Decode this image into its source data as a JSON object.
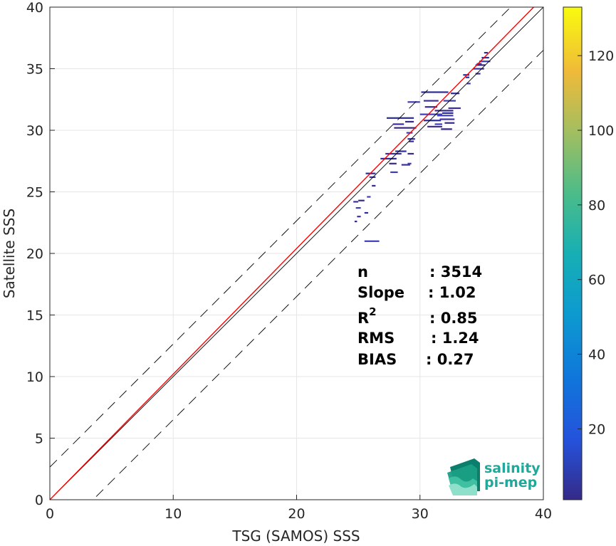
{
  "chart_data": {
    "type": "heatmap",
    "xlabel": "TSG (SAMOS) SSS",
    "ylabel": "Satellite SSS",
    "xlim": [
      0,
      40
    ],
    "ylim": [
      0,
      40
    ],
    "x_ticks": [
      0,
      10,
      20,
      30,
      40
    ],
    "y_ticks": [
      0,
      5,
      10,
      15,
      20,
      25,
      30,
      35,
      40
    ],
    "grid": true,
    "colormap": "parula",
    "colorbar": {
      "range": [
        1,
        133
      ],
      "ticks": [
        20,
        40,
        60,
        80,
        100,
        120
      ]
    },
    "reference_lines": [
      {
        "kind": "identity",
        "slope": 1,
        "intercept": 0,
        "color": "#000000",
        "style": "solid"
      },
      {
        "kind": "upper-bound",
        "slope": 1,
        "intercept": 2.65,
        "color": "#000000",
        "style": "dashed"
      },
      {
        "kind": "lower-bound",
        "slope": 1,
        "intercept": -3.5,
        "color": "#000000",
        "style": "dashed"
      },
      {
        "kind": "regression",
        "slope": 1.02,
        "intercept": 0,
        "color": "#ff0000",
        "style": "solid"
      }
    ],
    "density_segments": [
      [
        24.6,
        24.2,
        0.4
      ],
      [
        25.0,
        24.3,
        0.5
      ],
      [
        24.8,
        23.7,
        0.4
      ],
      [
        25.5,
        23.3,
        0.3
      ],
      [
        24.9,
        23.0,
        0.3
      ],
      [
        24.7,
        22.6,
        0.2
      ],
      [
        25.5,
        21.0,
        1.2
      ],
      [
        25.6,
        26.5,
        0.8
      ],
      [
        25.9,
        26.2,
        0.5
      ],
      [
        26.1,
        25.5,
        0.3
      ],
      [
        25.7,
        24.6,
        0.3
      ],
      [
        26.8,
        27.7,
        1.3
      ],
      [
        27.2,
        28.1,
        1.3
      ],
      [
        27.5,
        27.3,
        0.6
      ],
      [
        27.6,
        26.6,
        0.6
      ],
      [
        28.0,
        28.3,
        0.9
      ],
      [
        28.5,
        27.2,
        0.7
      ],
      [
        29.0,
        28.1,
        0.5
      ],
      [
        29.0,
        27.3,
        0.3
      ],
      [
        27.3,
        31.0,
        2.2
      ],
      [
        27.8,
        30.5,
        0.9
      ],
      [
        27.9,
        30.2,
        1.8
      ],
      [
        28.9,
        29.8,
        0.5
      ],
      [
        29.0,
        29.3,
        0.6
      ],
      [
        29.1,
        29.1,
        0.4
      ],
      [
        28.8,
        30.7,
        0.7
      ],
      [
        29.0,
        32.3,
        1.0
      ],
      [
        30.1,
        33.1,
        2.2
      ],
      [
        30.3,
        32.4,
        1.2
      ],
      [
        30.4,
        31.9,
        1.0
      ],
      [
        30.0,
        31.3,
        1.8
      ],
      [
        30.3,
        30.8,
        1.4
      ],
      [
        30.6,
        30.3,
        1.2
      ],
      [
        31.2,
        31.6,
        1.5
      ],
      [
        31.4,
        31.2,
        1.3
      ],
      [
        31.8,
        31.4,
        0.9
      ],
      [
        31.6,
        30.9,
        1.2
      ],
      [
        32.0,
        30.6,
        0.8
      ],
      [
        31.9,
        32.4,
        1.0
      ],
      [
        32.5,
        33.0,
        0.7
      ],
      [
        32.3,
        31.8,
        1.0
      ],
      [
        31.7,
        30.1,
        0.9
      ],
      [
        31.2,
        30.5,
        0.6
      ],
      [
        33.5,
        34.5,
        0.5
      ],
      [
        34.3,
        35.0,
        0.9
      ],
      [
        34.5,
        35.3,
        0.8
      ],
      [
        34.8,
        35.6,
        0.9
      ],
      [
        35.0,
        35.9,
        0.6
      ],
      [
        34.5,
        34.6,
        0.4
      ],
      [
        35.2,
        36.3,
        0.3
      ],
      [
        33.8,
        33.8,
        0.3
      ],
      [
        33.7,
        34.3,
        0.3
      ],
      [
        34.6,
        35.4,
        0.4
      ]
    ]
  },
  "stats": {
    "n_label": "n",
    "n_value": ": 3514",
    "slope_label": "Slope",
    "slope_value": ": 1.02",
    "r2_label": "R",
    "r2_sup": "2",
    "r2_value": ": 0.85",
    "rms_label": "RMS",
    "rms_value": ": 1.24",
    "bias_label": "BIAS",
    "bias_value": ": 0.27"
  },
  "logo": {
    "line1": "salinity",
    "line2": "pi-mep"
  }
}
